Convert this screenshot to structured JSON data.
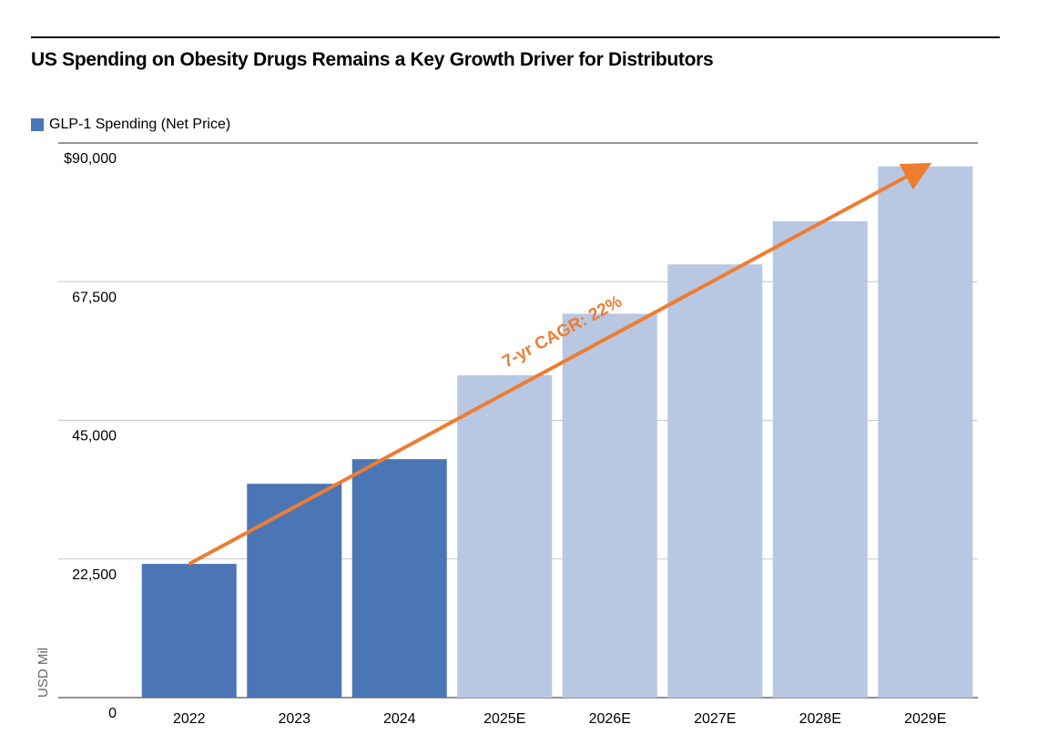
{
  "title": "US Spending on Obesity Drugs Remains a Key Growth Driver for Distributors",
  "colors": {
    "actual": "#4a76b6",
    "estimate": "#b8c8e2",
    "trend": "#ee7d31",
    "grid": "#c8c8c8",
    "axis": "#555555"
  },
  "chart_data": {
    "type": "bar",
    "title": "US Spending on Obesity Drugs Remains a Key Growth Driver for Distributors",
    "legend": [
      {
        "label": "GLP-1 Spending (Net Price)",
        "color": "#4a76b6"
      }
    ],
    "legend_position": "top-left",
    "xlabel": "",
    "ylabel": "USD Mil",
    "ylim": [
      0,
      90000
    ],
    "yticks": [
      0,
      22500,
      45000,
      67500,
      90000
    ],
    "ytick_labels": [
      "0",
      "22,500",
      "45,000",
      "67,500",
      "$90,000"
    ],
    "grid": true,
    "categories": [
      "2022",
      "2023",
      "2024",
      "2025E",
      "2026E",
      "2027E",
      "2028E",
      "2029E"
    ],
    "series": [
      {
        "name": "GLP-1 Spending (Net Price)",
        "values": [
          21700,
          34700,
          38700,
          52300,
          62300,
          70300,
          77300,
          86200
        ],
        "estimated": [
          false,
          false,
          false,
          true,
          true,
          true,
          true,
          true
        ]
      }
    ],
    "annotations": [
      {
        "type": "arrow",
        "from_category": "2022",
        "from_value": 21700,
        "to_category": "2029E",
        "to_value": 86200,
        "label": "7-yr CAGR: 22%"
      }
    ]
  }
}
